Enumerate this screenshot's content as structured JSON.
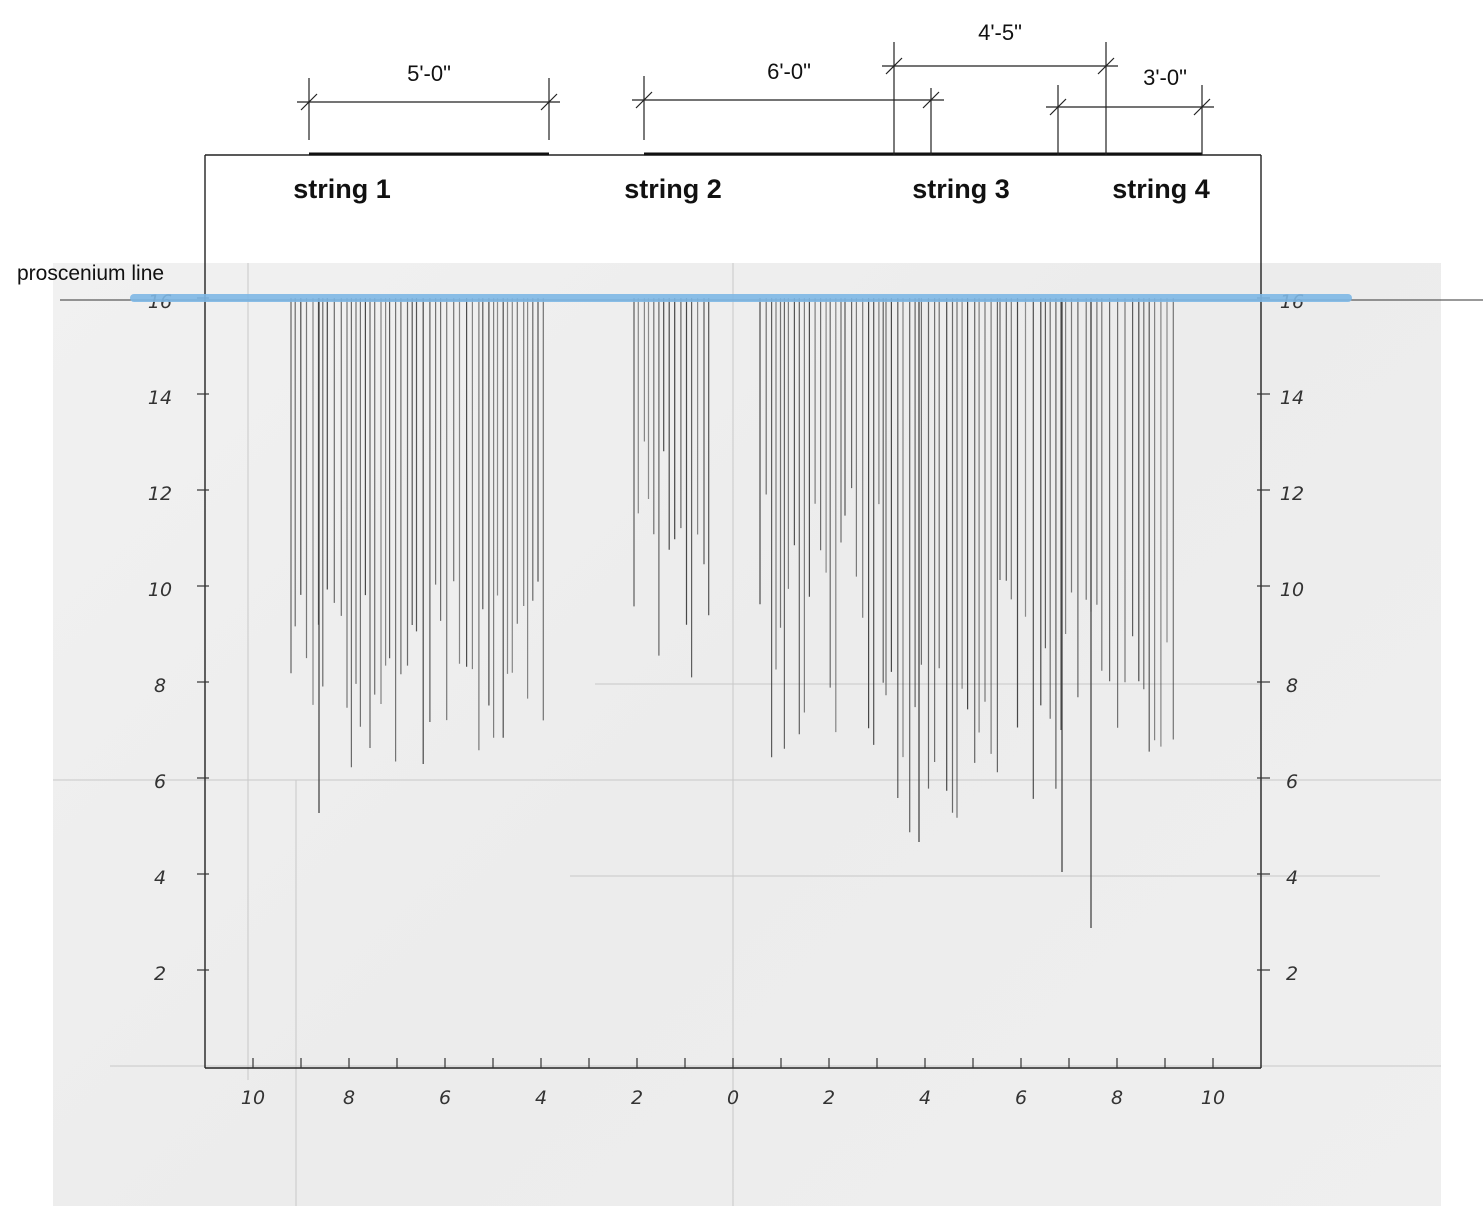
{
  "title": "",
  "proscenium_label": "proscenium line",
  "strings": [
    {
      "label": "string 1",
      "dimension": "5'-0\""
    },
    {
      "label": "string 2",
      "dimension": "6'-0\""
    },
    {
      "label": "string 3",
      "dimension": "4'-5\""
    },
    {
      "label": "string 4",
      "dimension": "3'-0\""
    }
  ],
  "axes": {
    "x_tick_labels": [
      "10",
      "8",
      "6",
      "4",
      "2",
      "0",
      "2",
      "4",
      "6",
      "8",
      "10"
    ],
    "y_left_tick_labels": [
      "16",
      "14",
      "12",
      "10",
      "8",
      "6",
      "4",
      "2"
    ],
    "y_right_tick_labels": [
      "16",
      "14",
      "12",
      "10",
      "8",
      "6",
      "4",
      "2"
    ]
  },
  "colors": {
    "proscenium_line": "#7fb8e6",
    "pencil": "#3a3a3a",
    "frame": "#222222"
  }
}
